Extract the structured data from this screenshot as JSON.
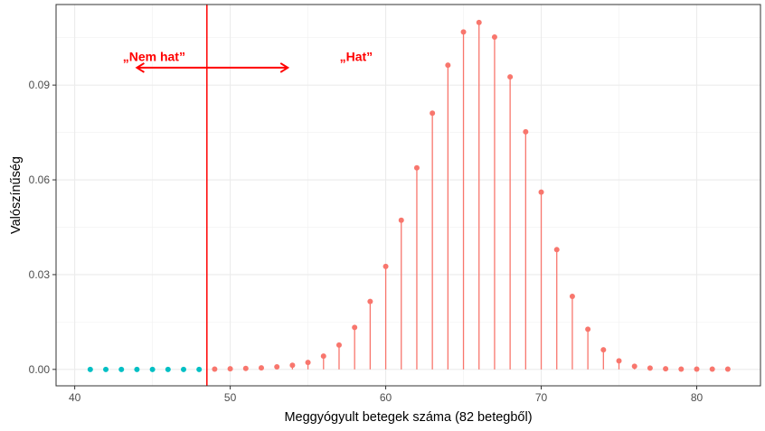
{
  "chart_data": {
    "type": "scatter",
    "xlabel": "Meggyógyult betegek száma (82 betegből)",
    "ylabel": "Valószínűség",
    "xlim": [
      38.8,
      84.1
    ],
    "ylim": [
      -0.0052,
      0.1155
    ],
    "x_ticks": [
      40,
      50,
      60,
      70,
      80
    ],
    "x_tick_labels": [
      "40",
      "50",
      "60",
      "70",
      "80"
    ],
    "y_ticks": [
      0.0,
      0.03,
      0.06,
      0.09
    ],
    "y_tick_labels": [
      "0.00",
      "0.03",
      "0.06",
      "0.09"
    ],
    "grid": true,
    "threshold_x": 48.5,
    "colors": {
      "hat": "#f8766d",
      "nem_hat": "#00bfc4",
      "annotation": "#ff0000"
    },
    "annotations": [
      {
        "text": "„Nem hat”",
        "x": 45.1,
        "y": 0.099
      },
      {
        "text": "„Hat”",
        "x": 58.1,
        "y": 0.099
      }
    ],
    "arrow": {
      "x_from": 44.0,
      "x_to": 53.7,
      "y": 0.0955
    },
    "series": [
      {
        "group": "nem_hat",
        "x": [
          41,
          42,
          43,
          44,
          45,
          46,
          47,
          48
        ],
        "y": [
          0,
          0,
          0,
          0,
          0,
          0,
          0,
          0
        ]
      },
      {
        "group": "hat",
        "x": [
          49,
          50,
          51,
          52,
          53,
          54,
          55,
          56,
          57,
          58,
          59,
          60,
          61,
          62,
          63,
          64,
          65,
          66,
          67,
          68,
          69,
          70,
          71,
          72,
          73,
          74,
          75,
          76,
          77,
          78,
          79,
          80,
          81,
          82
        ],
        "y": [
          0.0001,
          0.0002,
          0.0003,
          0.0005,
          0.0008,
          0.0013,
          0.0022,
          0.0042,
          0.0077,
          0.0133,
          0.0215,
          0.0326,
          0.0472,
          0.0638,
          0.0811,
          0.0963,
          0.1068,
          0.1098,
          0.1052,
          0.0926,
          0.0752,
          0.0561,
          0.0379,
          0.0231,
          0.0127,
          0.0062,
          0.0027,
          0.001,
          0.0004,
          0.0002,
          0.0001,
          0.0001,
          0.0001,
          0.0001
        ]
      }
    ]
  }
}
